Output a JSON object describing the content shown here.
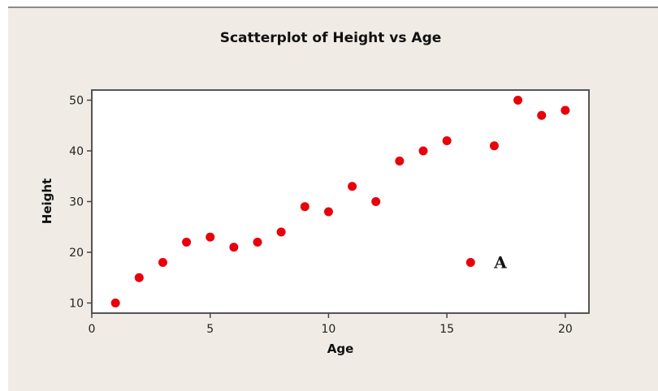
{
  "chart_data": {
    "type": "scatter",
    "title": "Scatterplot of Height vs Age",
    "xlabel": "Age",
    "ylabel": "Height",
    "xlim": [
      0,
      21
    ],
    "ylim": [
      8,
      52
    ],
    "xticks": [
      0,
      5,
      10,
      15,
      20
    ],
    "yticks": [
      10,
      20,
      30,
      40,
      50
    ],
    "grid": false,
    "series": [
      {
        "color": "#e8000b",
        "x": [
          1,
          2,
          3,
          4,
          5,
          6,
          7,
          8,
          9,
          10,
          11,
          12,
          13,
          14,
          15,
          16,
          17,
          18,
          19,
          20
        ],
        "y": [
          10,
          15,
          18,
          22,
          23,
          21,
          22,
          24,
          29,
          28,
          33,
          30,
          38,
          40,
          42,
          18,
          41,
          50,
          47,
          48
        ]
      }
    ],
    "annotations": [
      {
        "text": "A",
        "x": 16,
        "y": 18
      }
    ]
  },
  "colors": {
    "background": "#f0ece5",
    "plot_area": "#ffffff",
    "frame": "#555555",
    "marker": "#e8000b"
  }
}
